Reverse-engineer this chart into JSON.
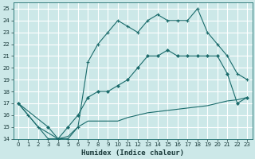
{
  "xlabel": "Humidex (Indice chaleur)",
  "bg_color": "#cce8e8",
  "grid_color": "#b0d0d0",
  "line_color": "#1a6b6b",
  "xlim": [
    -0.5,
    23.5
  ],
  "ylim": [
    14,
    25.5
  ],
  "xticks": [
    0,
    1,
    2,
    3,
    4,
    5,
    6,
    7,
    8,
    9,
    10,
    11,
    12,
    13,
    14,
    15,
    16,
    17,
    18,
    19,
    20,
    21,
    22,
    23
  ],
  "yticks": [
    14,
    15,
    16,
    17,
    18,
    19,
    20,
    21,
    22,
    23,
    24,
    25
  ],
  "line1_x": [
    0,
    1,
    2,
    3,
    4,
    5,
    6,
    7,
    8,
    9,
    10,
    11,
    12,
    13,
    14,
    15,
    16,
    17,
    18,
    19,
    20,
    21,
    22,
    23
  ],
  "line1_y": [
    17,
    16,
    15,
    14,
    14,
    14,
    15,
    20.5,
    22,
    23,
    24,
    23.5,
    23,
    24,
    24.5,
    24,
    24,
    24,
    25,
    23,
    22,
    21,
    19.5,
    19
  ],
  "line2_x": [
    0,
    3,
    4,
    5,
    6,
    7,
    8,
    9,
    10,
    11,
    12,
    13,
    14,
    15,
    16,
    17,
    18,
    19,
    20,
    21,
    22,
    23
  ],
  "line2_y": [
    17,
    15,
    14,
    15,
    16,
    17.5,
    18,
    18,
    18.5,
    19,
    20,
    21,
    21,
    21.5,
    21,
    21,
    21,
    21,
    21,
    19.5,
    17,
    17.5
  ],
  "line3_x": [
    0,
    2,
    3,
    4,
    5,
    6,
    7,
    8,
    9,
    10,
    11,
    12,
    13,
    14,
    15,
    16,
    17,
    18,
    19,
    20,
    21,
    22,
    23
  ],
  "line3_y": [
    17,
    15,
    14.5,
    14,
    14.2,
    15,
    15.5,
    15.5,
    15.5,
    15.5,
    15.8,
    16,
    16.2,
    16.3,
    16.4,
    16.5,
    16.6,
    16.7,
    16.8,
    17,
    17.2,
    17.3,
    17.5
  ]
}
